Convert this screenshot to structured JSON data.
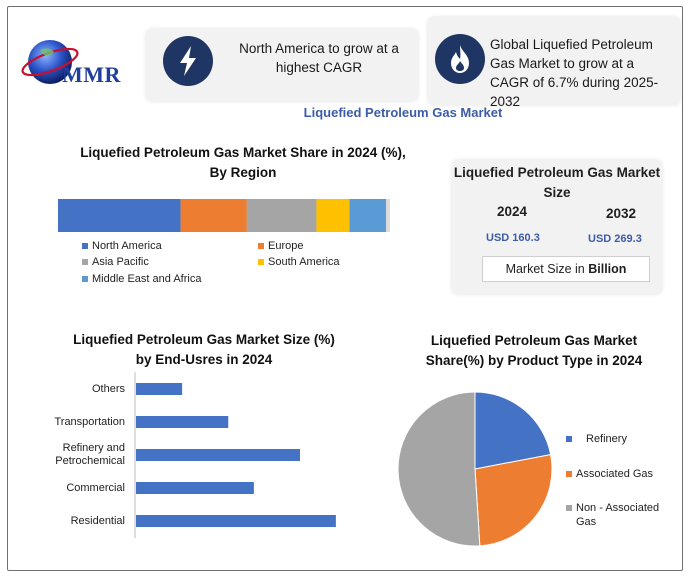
{
  "brand": {
    "logo_text": "MMR"
  },
  "highlights": [
    {
      "icon": "lightning-icon",
      "text": "North America to grow at a highest CAGR"
    },
    {
      "icon": "flame-icon",
      "text": "Global Liquefied Petroleum Gas Market to grow at a CAGR of 6.7% during 2025-2032"
    }
  ],
  "page_title": "Liquefied Petroleum Gas Market",
  "market_size": {
    "title": "Liquefied Petroleum Gas Market Size",
    "years": [
      "2024",
      "2032"
    ],
    "values": [
      "USD 160.3",
      "USD 269.3"
    ],
    "unit_prefix": "Market Size in ",
    "unit_bold": "Billion"
  },
  "chart_data": [
    {
      "type": "bar",
      "orientation": "horizontal-stacked",
      "title": "Liquefied Petroleum Gas Market Share in 2024 (%), By Region",
      "series": [
        {
          "name": "North America",
          "values": [
            37
          ],
          "color": "#4472c4"
        },
        {
          "name": "Europe",
          "values": [
            20
          ],
          "color": "#ed7d31"
        },
        {
          "name": "Asia Pacific",
          "values": [
            21
          ],
          "color": "#a5a5a5"
        },
        {
          "name": "South America",
          "values": [
            10
          ],
          "color": "#ffc000"
        },
        {
          "name": "Middle East and Africa",
          "values": [
            11
          ],
          "color": "#5b9bd5"
        }
      ],
      "legend": "bottom"
    },
    {
      "type": "bar",
      "orientation": "horizontal",
      "title": "Liquefied Petroleum Gas  Market Size (%) by End-Usres in 2024",
      "categories": [
        "Others",
        "Transportation",
        "Refinery and Petrochemical",
        "Commercial",
        "Residential"
      ],
      "category_lines": [
        [
          "Others"
        ],
        [
          "Transportation"
        ],
        [
          "Refinery and",
          "Petrochemical"
        ],
        [
          "Commercial"
        ],
        [
          "Residential"
        ]
      ],
      "values": [
        9,
        18,
        32,
        23,
        39
      ],
      "xlim": [
        0,
        40
      ],
      "color": "#4472c4"
    },
    {
      "type": "pie",
      "title": "Liquefied Petroleum Gas Market Share(%) by Product Type in 2024",
      "categories": [
        "Refinery",
        "Associated Gas",
        "Non - Associated Gas"
      ],
      "category_lines": [
        [
          "Refinery"
        ],
        [
          "Associated Gas"
        ],
        [
          "Non - Associated",
          "Gas"
        ]
      ],
      "values": [
        22,
        27,
        51
      ],
      "colors": [
        "#4472c4",
        "#ed7d31",
        "#a5a5a5"
      ],
      "legend": "right"
    }
  ]
}
